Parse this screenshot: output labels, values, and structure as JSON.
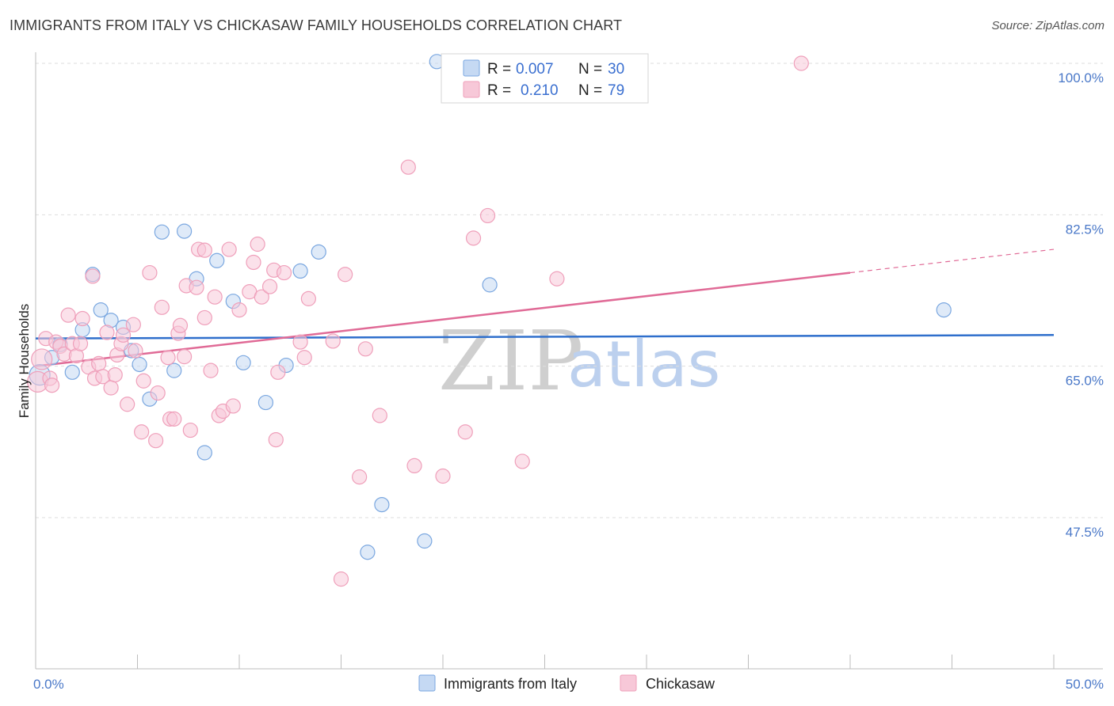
{
  "title": "IMMIGRANTS FROM ITALY VS CHICKASAW FAMILY HOUSEHOLDS CORRELATION CHART",
  "source": "Source: ZipAtlas.com",
  "watermark": {
    "zip": "ZIP",
    "atlas": "atlas"
  },
  "chart_data": {
    "type": "scatter",
    "ylabel": "Family Households",
    "xlim": [
      0,
      50
    ],
    "ylim": [
      30,
      102
    ],
    "x_tick_labels": [
      {
        "value": 0,
        "label": "0.0%"
      },
      {
        "value": 50,
        "label": "50.0%"
      }
    ],
    "x_minor_ticks": [
      0,
      5,
      10,
      15,
      20,
      25,
      30,
      35,
      40,
      45,
      50
    ],
    "y_ticks": [
      {
        "value": 100.0,
        "label": "100.0%"
      },
      {
        "value": 82.5,
        "label": "82.5%"
      },
      {
        "value": 65.0,
        "label": "65.0%"
      },
      {
        "value": 47.5,
        "label": "47.5%"
      }
    ],
    "series": [
      {
        "name": "Immigrants from Italy",
        "color": "#7aa7e0",
        "fill": "#c5d9f3",
        "line_color": "#2f6fcc",
        "legend_r": "0.007",
        "legend_n": "30",
        "trend": {
          "x0": 0,
          "y0": 68.2,
          "x1": 50,
          "y1": 68.6,
          "dashed_from": null
        },
        "points": [
          [
            0.2,
            64.0
          ],
          [
            0.8,
            66.0
          ],
          [
            1.2,
            67.5
          ],
          [
            1.8,
            64.3
          ],
          [
            2.3,
            69.2
          ],
          [
            2.8,
            75.6
          ],
          [
            3.2,
            71.5
          ],
          [
            3.7,
            70.3
          ],
          [
            4.3,
            69.5
          ],
          [
            4.7,
            66.8
          ],
          [
            5.1,
            65.2
          ],
          [
            5.6,
            61.2
          ],
          [
            6.2,
            80.5
          ],
          [
            6.8,
            64.5
          ],
          [
            7.3,
            80.6
          ],
          [
            7.9,
            75.1
          ],
          [
            8.3,
            55.0
          ],
          [
            8.9,
            77.2
          ],
          [
            9.7,
            72.5
          ],
          [
            10.2,
            65.4
          ],
          [
            11.3,
            60.8
          ],
          [
            12.3,
            65.1
          ],
          [
            13.0,
            76.0
          ],
          [
            13.9,
            78.2
          ],
          [
            16.3,
            43.5
          ],
          [
            17.0,
            49.0
          ],
          [
            19.1,
            44.8
          ],
          [
            19.7,
            100.2
          ],
          [
            22.3,
            74.4
          ],
          [
            44.6,
            71.5
          ]
        ]
      },
      {
        "name": "Chickasaw",
        "color": "#ef9fba",
        "fill": "#f7c8d8",
        "line_color": "#e06a96",
        "legend_r": "0.210",
        "legend_n": "79",
        "trend": {
          "x0": 0,
          "y0": 65.0,
          "x1": 50,
          "y1": 78.5,
          "dashed_from": 40
        },
        "points": [
          [
            0.1,
            63.2
          ],
          [
            0.3,
            65.8
          ],
          [
            0.5,
            68.2
          ],
          [
            0.7,
            63.6
          ],
          [
            0.8,
            62.8
          ],
          [
            1.0,
            67.8
          ],
          [
            1.2,
            67.3
          ],
          [
            1.4,
            66.4
          ],
          [
            1.6,
            70.9
          ],
          [
            1.8,
            67.6
          ],
          [
            2.0,
            66.2
          ],
          [
            2.2,
            67.6
          ],
          [
            2.3,
            70.5
          ],
          [
            2.6,
            64.9
          ],
          [
            2.8,
            75.4
          ],
          [
            2.9,
            63.6
          ],
          [
            3.1,
            65.3
          ],
          [
            3.3,
            63.8
          ],
          [
            3.5,
            68.9
          ],
          [
            3.7,
            62.5
          ],
          [
            3.9,
            64.0
          ],
          [
            4.0,
            66.3
          ],
          [
            4.2,
            67.6
          ],
          [
            4.3,
            68.6
          ],
          [
            4.5,
            60.6
          ],
          [
            4.8,
            69.8
          ],
          [
            4.9,
            66.8
          ],
          [
            5.2,
            57.4
          ],
          [
            5.3,
            63.3
          ],
          [
            5.6,
            75.8
          ],
          [
            5.9,
            56.4
          ],
          [
            6.0,
            61.9
          ],
          [
            6.2,
            71.8
          ],
          [
            6.5,
            66.0
          ],
          [
            6.6,
            58.9
          ],
          [
            6.8,
            58.9
          ],
          [
            7.0,
            68.8
          ],
          [
            7.1,
            69.7
          ],
          [
            7.3,
            66.1
          ],
          [
            7.4,
            74.3
          ],
          [
            7.6,
            57.6
          ],
          [
            7.9,
            74.1
          ],
          [
            8.0,
            78.5
          ],
          [
            8.3,
            78.4
          ],
          [
            8.3,
            70.6
          ],
          [
            8.6,
            64.5
          ],
          [
            8.8,
            73.0
          ],
          [
            9.0,
            59.3
          ],
          [
            9.2,
            59.8
          ],
          [
            9.5,
            78.5
          ],
          [
            9.7,
            60.4
          ],
          [
            10.0,
            71.5
          ],
          [
            10.5,
            73.6
          ],
          [
            10.7,
            77.0
          ],
          [
            10.9,
            79.1
          ],
          [
            11.1,
            73.0
          ],
          [
            11.5,
            74.2
          ],
          [
            11.7,
            76.1
          ],
          [
            11.8,
            56.5
          ],
          [
            11.9,
            64.3
          ],
          [
            12.2,
            75.8
          ],
          [
            13.0,
            67.8
          ],
          [
            13.2,
            66.0
          ],
          [
            13.4,
            72.8
          ],
          [
            14.6,
            67.9
          ],
          [
            15.2,
            75.6
          ],
          [
            15.0,
            40.4
          ],
          [
            15.9,
            52.2
          ],
          [
            16.2,
            67.0
          ],
          [
            16.9,
            59.3
          ],
          [
            18.3,
            88.0
          ],
          [
            18.6,
            53.5
          ],
          [
            20.0,
            52.3
          ],
          [
            21.1,
            57.4
          ],
          [
            21.5,
            79.8
          ],
          [
            22.2,
            82.4
          ],
          [
            23.9,
            54.0
          ],
          [
            25.6,
            75.1
          ],
          [
            37.6,
            100.0
          ]
        ]
      }
    ]
  }
}
